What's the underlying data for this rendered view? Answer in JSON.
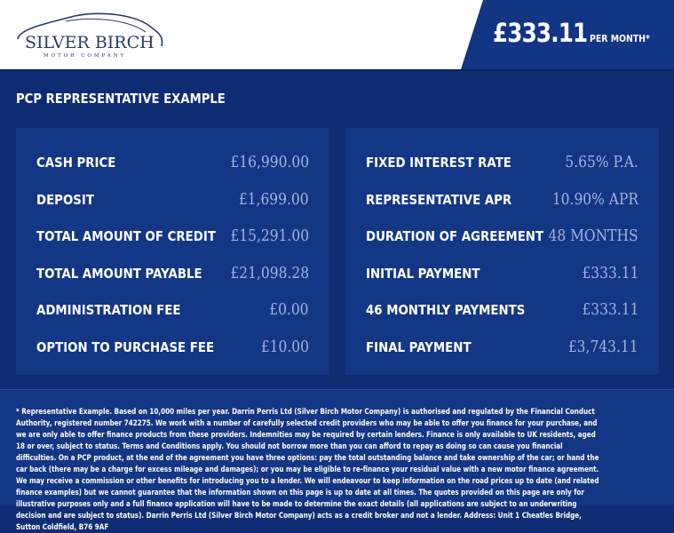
{
  "header": {
    "logo_text": "SILVER BIRCH",
    "logo_subtext": "MOTOR COMPANY",
    "price": "£333.11",
    "price_suffix": "PER MONTH*",
    "colors": {
      "brand": "#123584",
      "background": "#0e2c72",
      "value": "#a2b3df"
    }
  },
  "main": {
    "title": "PCP REPRESENTATIVE EXAMPLE",
    "left": [
      {
        "label": "CASH PRICE",
        "value": "£16,990.00"
      },
      {
        "label": "DEPOSIT",
        "value": "£1,699.00"
      },
      {
        "label": "TOTAL AMOUNT OF CREDIT",
        "value": "£15,291.00"
      },
      {
        "label": "TOTAL AMOUNT PAYABLE",
        "value": "£21,098.28"
      },
      {
        "label": "ADMINISTRATION FEE",
        "value": "£0.00"
      },
      {
        "label": "OPTION TO PURCHASE FEE",
        "value": "£10.00"
      }
    ],
    "right": [
      {
        "label": "FIXED INTEREST RATE",
        "value": "5.65% P.A."
      },
      {
        "label": "REPRESENTATIVE APR",
        "value": "10.90% APR"
      },
      {
        "label": "DURATION OF AGREEMENT",
        "value": "48 MONTHS"
      },
      {
        "label": "INITIAL PAYMENT",
        "value": "£333.11"
      },
      {
        "label": "46 MONTHLY PAYMENTS",
        "value": "£333.11"
      },
      {
        "label": "FINAL PAYMENT",
        "value": "£3,743.11"
      }
    ]
  },
  "disclaimer": "* Representative Example. Based on 10,000 miles per year. Darrin Perris Ltd (Silver Birch Motor Company) is authorised and regulated by the Financial Conduct Authority, registered number 742275. We work with a number of carefully selected credit providers who may be able to offer you finance for your purchase, and we are only able to offer finance products from these providers. Indemnities may be required by certain lenders. Finance is only available to UK residents, aged 18 or over, subject to status. Terms and Conditions apply. You should not borrow more than you can afford to repay as doing so can cause you financial difficulties. On a PCP product, at the end of the agreement you have three options: pay the total outstanding balance and take ownership of the car; or hand the car back (there may be a charge for excess mileage and damages); or you may be eligible to re-finance your residual value with a new motor finance agreement. We may receive a commission or other benefits for introducing you to a lender. We will endeavour to keep information on the road prices up to date (and related finance examples) but we cannot guarantee that the information shown on this page is up to date at all times. The quotes provided on this page are only for illustrative purposes only and a full finance application will have to be made to determine the exact details (all applications are subject to an underwriting decision and are subject to status). Darrin Perris Ltd (Silver Birch Motor Company) acts as a credit broker and not a lender. Address: Unit 1 Cheatles Bridge, Sutton Coldfield, B76 9AF"
}
